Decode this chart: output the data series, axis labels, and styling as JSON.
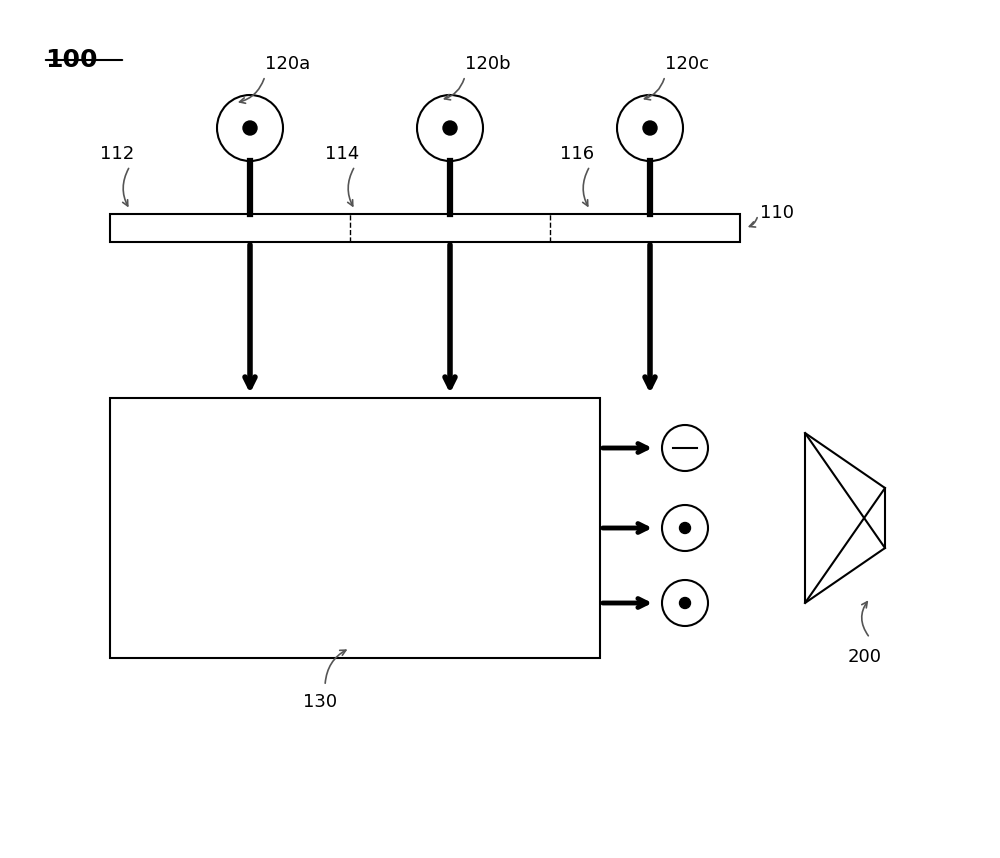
{
  "bg_color": "#ffffff",
  "line_color": "#000000",
  "label_color": "#555555",
  "label_100": "100",
  "label_110": "110",
  "label_112": "112",
  "label_114": "114",
  "label_116": "116",
  "label_120a": "120a",
  "label_120b": "120b",
  "label_120c": "120c",
  "label_130": "130",
  "label_200": "200",
  "fig_width": 10.0,
  "fig_height": 8.58,
  "dpi": 100
}
